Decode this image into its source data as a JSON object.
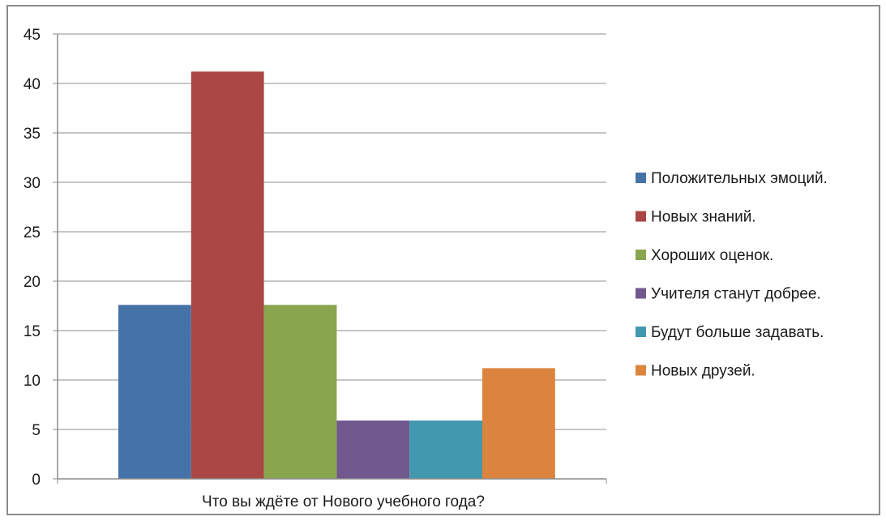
{
  "chart_data": {
    "type": "bar",
    "title": "",
    "xlabel": "",
    "ylabel": "",
    "categories": [
      "Что вы ждёте от Нового учебного года?"
    ],
    "series": [
      {
        "name": "Положительных эмоций.",
        "values": [
          17.6
        ],
        "color": "#4572a7"
      },
      {
        "name": "Новых знаний.",
        "values": [
          41.2
        ],
        "color": "#aa4643"
      },
      {
        "name": "Хороших оценок.",
        "values": [
          17.6
        ],
        "color": "#89a54e"
      },
      {
        "name": "Учителя станут добрее.",
        "values": [
          5.9
        ],
        "color": "#71588f"
      },
      {
        "name": "Будут больше задавать.",
        "values": [
          5.9
        ],
        "color": "#4198af"
      },
      {
        "name": "Новых друзей.",
        "values": [
          11.2
        ],
        "color": "#db843d"
      }
    ],
    "ylim": [
      0,
      45
    ],
    "yticks": [
      0,
      5,
      10,
      15,
      20,
      25,
      30,
      35,
      40,
      45
    ],
    "grid": true,
    "legend_position": "right"
  }
}
